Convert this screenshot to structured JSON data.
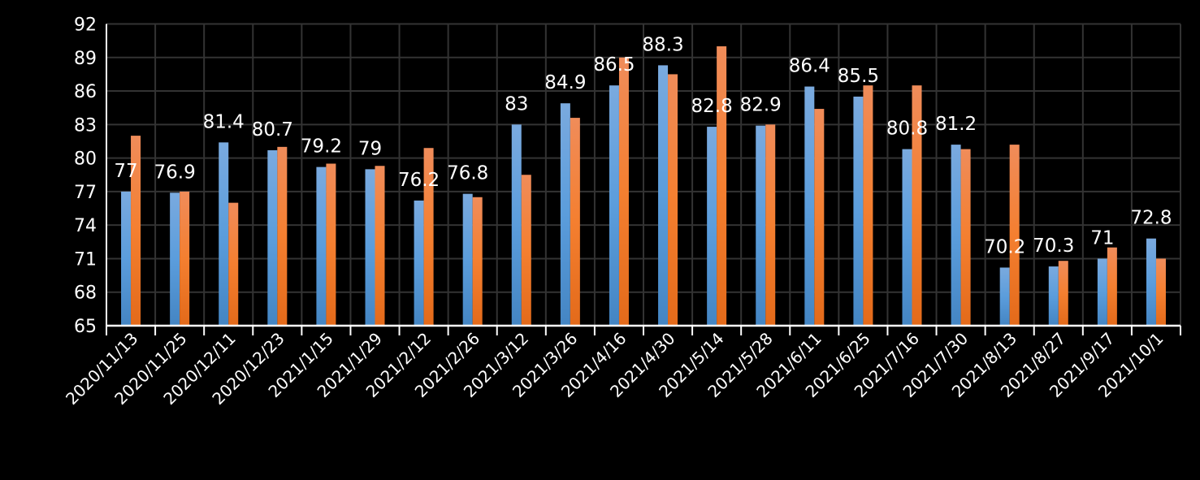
{
  "chart_data": {
    "type": "bar",
    "title": "",
    "xlabel": "",
    "ylabel": "",
    "ylim": [
      65,
      92
    ],
    "yticks": [
      65,
      68,
      71,
      74,
      77,
      80,
      83,
      86,
      89,
      92
    ],
    "grid": true,
    "legend": "none",
    "categories": [
      "2020/11/13",
      "2020/11/25",
      "2020/12/11",
      "2020/12/23",
      "2021/1/15",
      "2021/1/29",
      "2021/2/12",
      "2021/2/26",
      "2021/3/12",
      "2021/3/26",
      "2021/4/16",
      "2021/4/30",
      "2021/5/14",
      "2021/5/28",
      "2021/6/11",
      "2021/6/25",
      "2021/7/16",
      "2021/7/30",
      "2021/8/13",
      "2021/8/27",
      "2021/9/17",
      "2021/10/1"
    ],
    "series": [
      {
        "color": "#5b9bd5",
        "labeled": true,
        "values": [
          77,
          76.9,
          81.4,
          80.7,
          79.2,
          79,
          76.2,
          76.8,
          83,
          84.9,
          86.5,
          88.3,
          82.8,
          82.9,
          86.4,
          85.5,
          80.8,
          81.2,
          70.2,
          70.3,
          71,
          72.8
        ]
      },
      {
        "color": "#ed7d31",
        "labeled": false,
        "values": [
          82,
          77,
          76,
          81,
          79.5,
          79.3,
          80.9,
          76.5,
          78.5,
          83.6,
          89,
          87.5,
          90,
          83,
          84.4,
          86.5,
          86.5,
          80.8,
          81.2,
          70.8,
          72,
          71
        ]
      }
    ]
  }
}
